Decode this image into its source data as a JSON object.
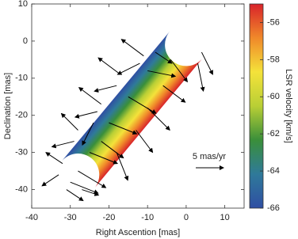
{
  "chart_data": {
    "type": "vector-field",
    "xlabel": "Right Ascention [mas]",
    "ylabel": "Declination [mas]",
    "xlim": [
      -40,
      15
    ],
    "ylim": [
      -45,
      10
    ],
    "xticks": [
      -40,
      -30,
      -20,
      -10,
      0,
      10
    ],
    "yticks": [
      10,
      0,
      -10,
      -20,
      -30,
      -40
    ],
    "jet": {
      "x": [
        0,
        -28
      ],
      "y": [
        -1,
        -36
      ],
      "radius": 5.5
    },
    "vectors": {
      "x": [
        -11,
        -12,
        -10,
        -6,
        3,
        4,
        -17,
        -18,
        -15,
        -10,
        -22,
        -23,
        -20,
        -13,
        -24,
        -28,
        -29,
        -25,
        -18,
        -32,
        -33,
        -30,
        -27,
        -8,
        -4,
        -22,
        -28,
        -31
      ],
      "y": [
        -4,
        -6,
        -8,
        -12,
        -6,
        -3,
        -9,
        -12,
        -15,
        -18,
        -17,
        -19,
        -22,
        -24,
        -22,
        -24,
        -27,
        -30,
        -30,
        -33,
        -36,
        -38,
        -40,
        -3,
        -5,
        -27,
        -35,
        -40
      ],
      "u": [
        -4,
        -4,
        5,
        4,
        1,
        2,
        -4,
        -4,
        5,
        4,
        -4,
        -4,
        5,
        3,
        -2,
        -3,
        -4,
        5,
        2,
        -3,
        -3,
        5,
        3,
        3,
        3,
        4,
        5,
        3
      ],
      "v": [
        3,
        -2,
        -1,
        -3,
        -5,
        -4,
        3,
        -1,
        -3,
        -4,
        3,
        -1,
        -2,
        -4,
        -4,
        3,
        -1,
        -2,
        -5,
        2,
        -2,
        -2,
        -1,
        -2,
        -4,
        -3,
        -3,
        -2
      ]
    },
    "vector_color": "#000000",
    "reference_vector": {
      "value": 5,
      "label": "5 mas/yr"
    },
    "colorbar": {
      "label": "LSR velocity [km/s]",
      "lim": [
        -66,
        -55
      ],
      "ticks": [
        -66,
        -64,
        -62,
        -60,
        -58,
        -56
      ],
      "colormap": [
        "#2f4ea3",
        "#2f7a9a",
        "#3a8f3a",
        "#b9cf35",
        "#f4e23a",
        "#f0892a",
        "#d8232a"
      ]
    }
  }
}
